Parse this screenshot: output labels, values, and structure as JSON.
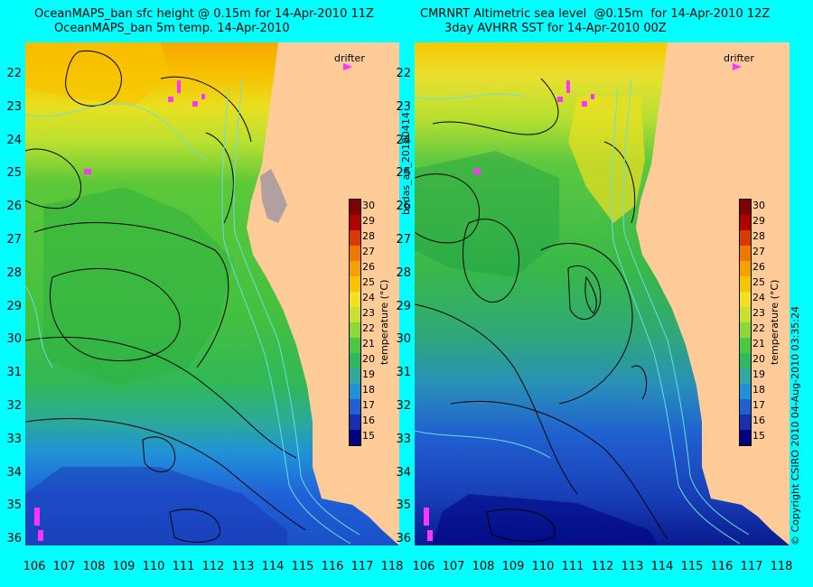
{
  "titles": {
    "left_line1": "OceanMAPS_ban sfc height @ 0.15m for 14-Apr-2010 11Z",
    "left_line2": "OceanMAPS_ban 5m temp. 14-Apr-2010",
    "right_line1": "CMRNRT Altimetric sea level  @0.15m  for 14-Apr-2010 12Z",
    "right_line2": "3day AVHRR SST for 14-Apr-2010 00Z"
  },
  "drifter_label": "drifter",
  "side_label": "bodas_an_20100414",
  "copyright": "© Copyright CSIRO 2010   04-Aug-2010 03:35:24",
  "colorbar": {
    "label": "temperature (°C)",
    "ticks": [
      "30",
      "29",
      "28",
      "27",
      "26",
      "25",
      "24",
      "23",
      "22",
      "21",
      "20",
      "19",
      "18",
      "17",
      "16",
      "15"
    ],
    "colors": [
      "#7f0000",
      "#b30000",
      "#d83a00",
      "#f07800",
      "#f7a000",
      "#f8c400",
      "#f0e020",
      "#c8e030",
      "#8cd838",
      "#4cc840",
      "#30b860",
      "#30a8a0",
      "#2090d8",
      "#2060d0",
      "#1830b0",
      "#000080"
    ]
  },
  "lat_labels": [
    "22",
    "23",
    "24",
    "25",
    "26",
    "27",
    "28",
    "29",
    "30",
    "31",
    "32",
    "33",
    "34",
    "35",
    "36"
  ],
  "lon_labels": [
    "106",
    "107",
    "108",
    "109",
    "110",
    "111",
    "112",
    "113",
    "114",
    "115",
    "116",
    "117",
    "118"
  ],
  "colors": {
    "background": "#00ffff",
    "land": "#ffcc99",
    "drifter": "#ff33ff",
    "contour": "#000000",
    "bathymetry": "#66e0e0"
  }
}
